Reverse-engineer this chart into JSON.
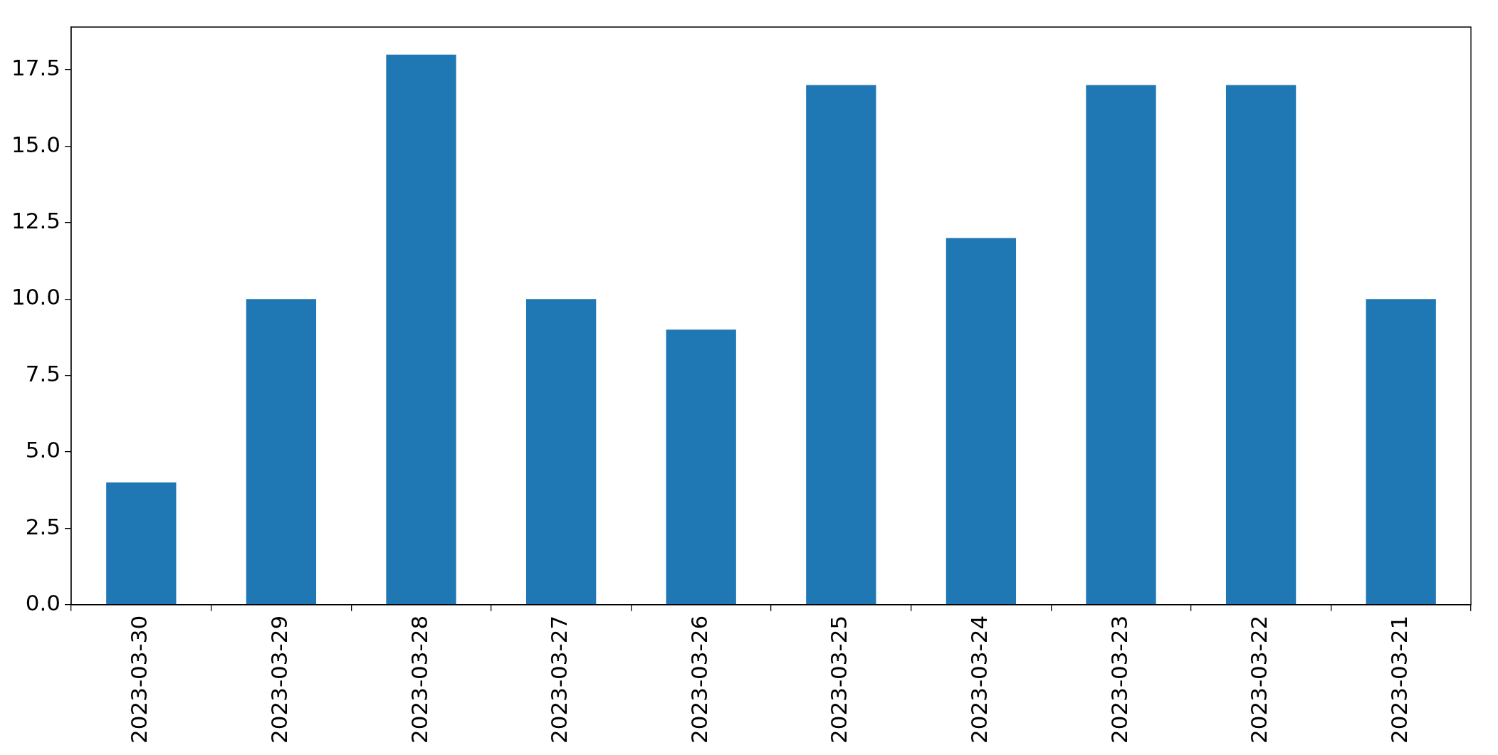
{
  "chart_data": {
    "type": "bar",
    "categories": [
      "2023-03-30",
      "2023-03-29",
      "2023-03-28",
      "2023-03-27",
      "2023-03-26",
      "2023-03-25",
      "2023-03-24",
      "2023-03-23",
      "2023-03-22",
      "2023-03-21"
    ],
    "values": [
      4,
      10,
      18,
      10,
      9,
      17,
      12,
      17,
      17,
      10
    ],
    "color": "#1f77b4",
    "ylim": [
      0,
      18.9
    ],
    "yticks": [
      {
        "value": 0,
        "label": "0.0"
      },
      {
        "value": 2.5,
        "label": "2.5"
      },
      {
        "value": 5,
        "label": "5.0"
      },
      {
        "value": 7.5,
        "label": "7.5"
      },
      {
        "value": 10,
        "label": "10.0"
      },
      {
        "value": 12.5,
        "label": "12.5"
      },
      {
        "value": 15,
        "label": "15.0"
      },
      {
        "value": 17.5,
        "label": "17.5"
      }
    ],
    "grid": false,
    "legend": false
  }
}
